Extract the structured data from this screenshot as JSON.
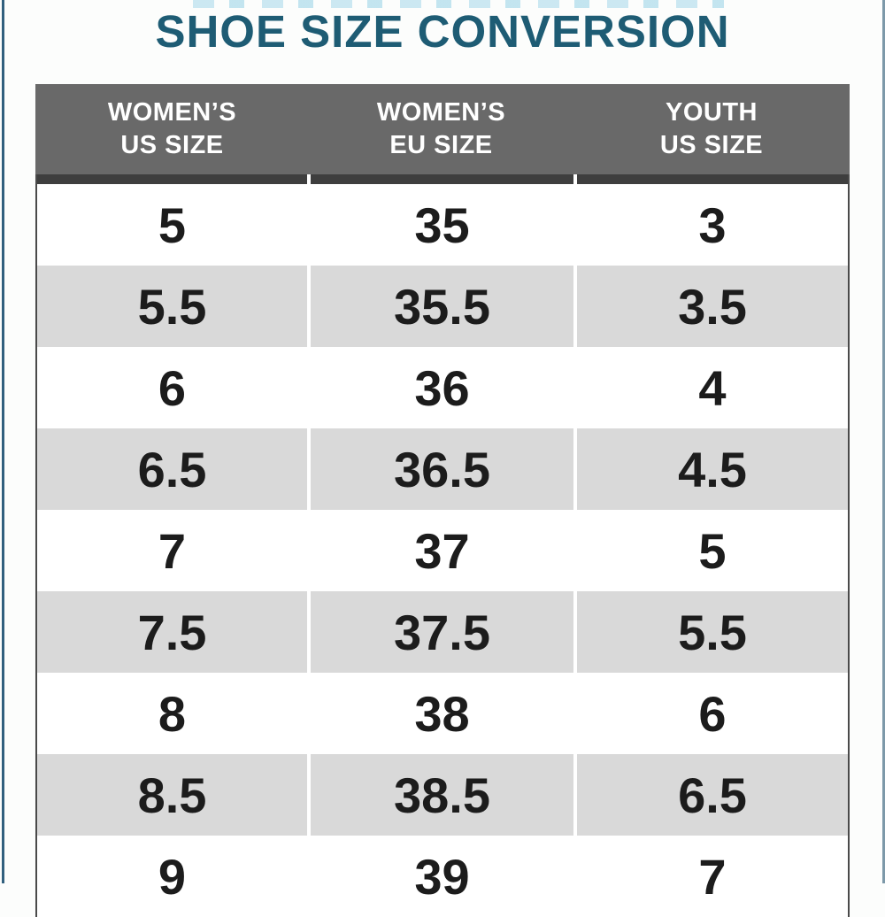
{
  "page": {
    "title": "SHOE SIZE CONVERSION",
    "colors": {
      "title_text": "#1E5C74",
      "header_bg": "#696969",
      "header_text": "#FFFFFF",
      "header_underline": "#3E3E3E",
      "row_bg": "#FFFFFF",
      "row_alt_bg": "#D9D9D9",
      "cell_text": "#1C1C1C",
      "left_edge_line": "#31607E",
      "right_edge_line": "#7D99A9"
    }
  },
  "chart_data": {
    "type": "table",
    "title": "SHOE SIZE CONVERSION",
    "columns": [
      {
        "line1": "WOMEN’S",
        "line2": "US SIZE"
      },
      {
        "line1": "WOMEN’S",
        "line2": "EU SIZE"
      },
      {
        "line1": "YOUTH",
        "line2": "US SIZE"
      }
    ],
    "rows": [
      [
        "5",
        "35",
        "3"
      ],
      [
        "5.5",
        "35.5",
        "3.5"
      ],
      [
        "6",
        "36",
        "4"
      ],
      [
        "6.5",
        "36.5",
        "4.5"
      ],
      [
        "7",
        "37",
        "5"
      ],
      [
        "7.5",
        "37.5",
        "5.5"
      ],
      [
        "8",
        "38",
        "6"
      ],
      [
        "8.5",
        "38.5",
        "6.5"
      ],
      [
        "9",
        "39",
        "7"
      ]
    ]
  }
}
